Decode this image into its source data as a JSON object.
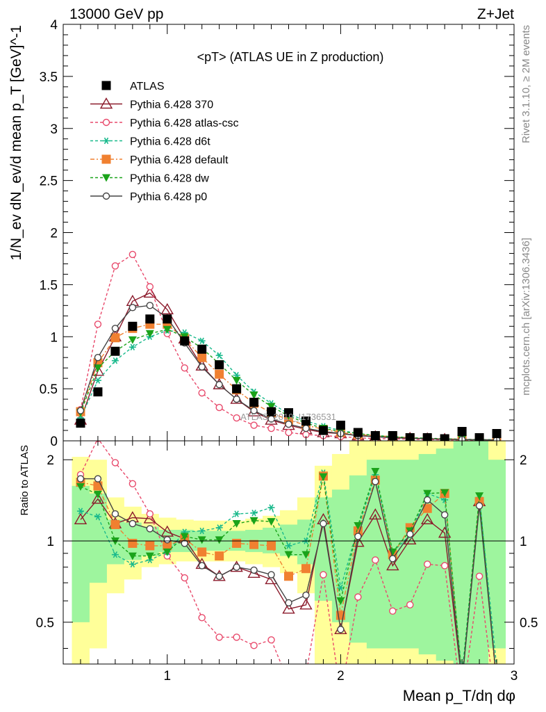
{
  "header": {
    "left": "13000 GeV pp",
    "right": "Z+Jet",
    "side_top": "Rivet 3.1.10, ≥ 2M events",
    "side_bottom": "mcplots.cern.ch [arXiv:1306.3436]",
    "watermark": "ATLAS_2019_I1736531"
  },
  "chart_data": [
    {
      "type": "scatter",
      "title": "<pT> (ATLAS UE in Z production)",
      "ylabel": "1/N_ev dN_ev/d mean p_T [GeV]^-1",
      "xlim": [
        0.4,
        3.0
      ],
      "ylim": [
        0,
        4
      ],
      "y_ticks": [
        "0",
        "0.5",
        "1",
        "1.5",
        "2",
        "2.5",
        "3",
        "3.5",
        "4"
      ],
      "legend_position": "top-left",
      "x": [
        0.5,
        0.6,
        0.7,
        0.8,
        0.9,
        1.0,
        1.1,
        1.2,
        1.3,
        1.4,
        1.5,
        1.6,
        1.7,
        1.8,
        1.9,
        2.0,
        2.1,
        2.2,
        2.3,
        2.4,
        2.5,
        2.6,
        2.7,
        2.8,
        2.9
      ],
      "series": [
        {
          "name": "ATLAS",
          "color": "#000000",
          "marker": "square",
          "dash": "none",
          "values": [
            0.17,
            0.47,
            0.86,
            1.1,
            1.17,
            1.17,
            0.96,
            0.88,
            0.73,
            0.5,
            0.37,
            0.28,
            0.27,
            0.19,
            0.1,
            0.15,
            0.08,
            0.05,
            0.05,
            0.03,
            0.03,
            0.02,
            0.09,
            0.03,
            0.07
          ]
        },
        {
          "name": "Pythia 6.428 370",
          "color": "#8b1a2b",
          "marker": "triangle-open",
          "dash": "none",
          "values": [
            0.2,
            0.67,
            1.0,
            1.34,
            1.42,
            1.26,
            0.98,
            0.72,
            0.54,
            0.4,
            0.28,
            0.2,
            0.15,
            0.11,
            0.08,
            0.07,
            0.05,
            0.04,
            0.03,
            0.025,
            0.02,
            0.015,
            0.012,
            0.01,
            0.008
          ]
        },
        {
          "name": "Pythia 6.428 atlas-csc",
          "color": "#e8496b",
          "marker": "circle-open",
          "dash": "4,3",
          "values": [
            0.3,
            1.12,
            1.68,
            1.79,
            1.48,
            1.03,
            0.7,
            0.46,
            0.32,
            0.22,
            0.15,
            0.12,
            0.08,
            0.06,
            0.05,
            0.04,
            0.03,
            0.02,
            0.02,
            0.015,
            0.012,
            0.01,
            0.008,
            0.006,
            0.005
          ]
        },
        {
          "name": "Pythia 6.428 d6t",
          "color": "#19b98c",
          "marker": "asterisk",
          "dash": "4,3",
          "values": [
            0.22,
            0.58,
            0.77,
            0.9,
            1.0,
            1.06,
            1.04,
            0.96,
            0.82,
            0.63,
            0.47,
            0.36,
            0.26,
            0.19,
            0.14,
            0.1,
            0.07,
            0.05,
            0.04,
            0.03,
            0.025,
            0.02,
            0.015,
            0.012,
            0.01
          ]
        },
        {
          "name": "Pythia 6.428 default",
          "color": "#f08030",
          "marker": "square",
          "dash": "6,3,2,3",
          "values": [
            0.28,
            0.75,
            0.99,
            1.08,
            1.12,
            1.12,
            0.98,
            0.8,
            0.64,
            0.49,
            0.36,
            0.27,
            0.2,
            0.15,
            0.11,
            0.08,
            0.06,
            0.05,
            0.04,
            0.03,
            0.02,
            0.02,
            0.015,
            0.01,
            0.01
          ]
        },
        {
          "name": "Pythia 6.428 dw",
          "color": "#1aa31a",
          "marker": "triangle-down",
          "dash": "4,3",
          "values": [
            0.27,
            0.7,
            0.86,
            0.97,
            1.03,
            1.07,
            1.0,
            0.89,
            0.74,
            0.58,
            0.44,
            0.33,
            0.24,
            0.17,
            0.12,
            0.09,
            0.07,
            0.05,
            0.04,
            0.03,
            0.025,
            0.02,
            0.015,
            0.012,
            0.01
          ]
        },
        {
          "name": "Pythia 6.428 p0",
          "color": "#444444",
          "marker": "circle-open",
          "dash": "none",
          "values": [
            0.29,
            0.8,
            1.08,
            1.28,
            1.3,
            1.18,
            0.94,
            0.71,
            0.54,
            0.4,
            0.29,
            0.21,
            0.16,
            0.12,
            0.09,
            0.07,
            0.05,
            0.04,
            0.03,
            0.025,
            0.02,
            0.015,
            0.012,
            0.01,
            0.008
          ]
        }
      ]
    },
    {
      "type": "line",
      "ylabel": "Ratio to ATLAS",
      "xlabel": "Mean p_T/dη dφ",
      "xlim": [
        0.4,
        3.0
      ],
      "ylim": [
        0.35,
        2.35
      ],
      "x_ticks": [
        "1",
        "2",
        "3"
      ],
      "y_ticks": [
        "0.5",
        "1",
        "2"
      ],
      "band_1sigma": [
        [
          0.5,
          1.6
        ],
        [
          0.7,
          1.5
        ],
        [
          0.82,
          1.2
        ],
        [
          0.85,
          1.17
        ],
        [
          0.88,
          1.13
        ],
        [
          0.91,
          1.1
        ],
        [
          0.91,
          1.1
        ],
        [
          0.92,
          1.09
        ],
        [
          0.92,
          1.09
        ],
        [
          0.92,
          1.09
        ],
        [
          0.91,
          1.1
        ],
        [
          0.9,
          1.12
        ],
        [
          0.88,
          1.15
        ],
        [
          0.82,
          1.2
        ],
        [
          0.6,
          1.45
        ],
        [
          0.5,
          1.55
        ],
        [
          0.42,
          1.75
        ],
        [
          0.4,
          2.0
        ],
        [
          0.4,
          2.0
        ],
        [
          0.4,
          2.0
        ],
        [
          0.38,
          2.1
        ],
        [
          0.36,
          2.2
        ],
        [
          0.35,
          2.35
        ],
        [
          0.35,
          2.35
        ],
        [
          0.4,
          2.0
        ]
      ],
      "band_2sigma": [
        [
          0.35,
          2.05
        ],
        [
          0.4,
          2.0
        ],
        [
          0.64,
          1.45
        ],
        [
          0.72,
          1.34
        ],
        [
          0.8,
          1.26
        ],
        [
          0.82,
          1.22
        ],
        [
          0.84,
          1.2
        ],
        [
          0.84,
          1.19
        ],
        [
          0.84,
          1.19
        ],
        [
          0.84,
          1.19
        ],
        [
          0.82,
          1.21
        ],
        [
          0.8,
          1.24
        ],
        [
          0.76,
          1.3
        ],
        [
          0.64,
          1.45
        ],
        [
          0.35,
          1.9
        ],
        [
          0.35,
          2.1
        ],
        [
          0.35,
          2.35
        ],
        [
          0.35,
          2.35
        ],
        [
          0.35,
          2.35
        ],
        [
          0.35,
          2.35
        ],
        [
          0.35,
          2.35
        ],
        [
          0.35,
          2.35
        ],
        [
          0.35,
          2.35
        ],
        [
          0.35,
          2.35
        ],
        [
          0.35,
          2.35
        ]
      ],
      "series": [
        {
          "name": "Pythia 6.428 370",
          "values": [
            1.2,
            1.43,
            1.16,
            1.22,
            1.21,
            1.08,
            1.02,
            0.82,
            0.74,
            0.8,
            0.76,
            0.72,
            0.56,
            0.58,
            1.2,
            0.47,
            0.99,
            1.25,
            0.81,
            1.01,
            1.2,
            1.07,
            0.3,
            1.4,
            0.3
          ]
        },
        {
          "name": "Pythia 6.428 atlas-csc",
          "values": [
            1.76,
            2.4,
            1.95,
            1.63,
            1.26,
            0.88,
            0.73,
            0.52,
            0.44,
            0.44,
            0.41,
            0.43,
            0.3,
            0.32,
            0.75,
            0.27,
            0.62,
            0.85,
            0.55,
            0.58,
            0.82,
            0.81,
            0.25,
            0.74,
            0.23
          ]
        },
        {
          "name": "Pythia 6.428 d6t",
          "values": [
            1.29,
            1.23,
            0.89,
            0.82,
            0.85,
            0.91,
            1.08,
            1.09,
            1.12,
            1.26,
            1.27,
            1.33,
            0.96,
            1.0,
            1.79,
            0.67,
            1.12,
            1.76,
            0.91,
            1.05,
            1.5,
            1.42,
            0.32,
            1.45,
            0.34
          ]
        },
        {
          "name": "Pythia 6.428 default",
          "values": [
            1.65,
            1.6,
            1.15,
            0.98,
            0.96,
            0.96,
            1.02,
            0.91,
            0.88,
            0.98,
            0.97,
            0.96,
            0.74,
            0.79,
            1.74,
            0.53,
            1.09,
            1.68,
            0.89,
            1.12,
            1.32,
            1.5,
            0.3,
            1.4,
            0.29
          ]
        },
        {
          "name": "Pythia 6.428 dw",
          "values": [
            1.59,
            1.49,
            1.0,
            0.88,
            0.88,
            0.91,
            1.04,
            1.01,
            1.01,
            1.16,
            1.19,
            1.18,
            0.89,
            0.89,
            1.73,
            0.6,
            1.14,
            1.81,
            0.91,
            1.09,
            1.5,
            1.51,
            0.31,
            1.47,
            0.3
          ]
        },
        {
          "name": "Pythia 6.428 p0",
          "values": [
            1.7,
            1.7,
            1.26,
            1.16,
            1.11,
            1.01,
            0.98,
            0.81,
            0.74,
            0.8,
            0.78,
            0.75,
            0.59,
            0.63,
            1.16,
            0.47,
            1.04,
            1.66,
            0.86,
            1.06,
            1.42,
            1.25,
            0.3,
            1.35,
            0.3
          ]
        }
      ]
    }
  ]
}
